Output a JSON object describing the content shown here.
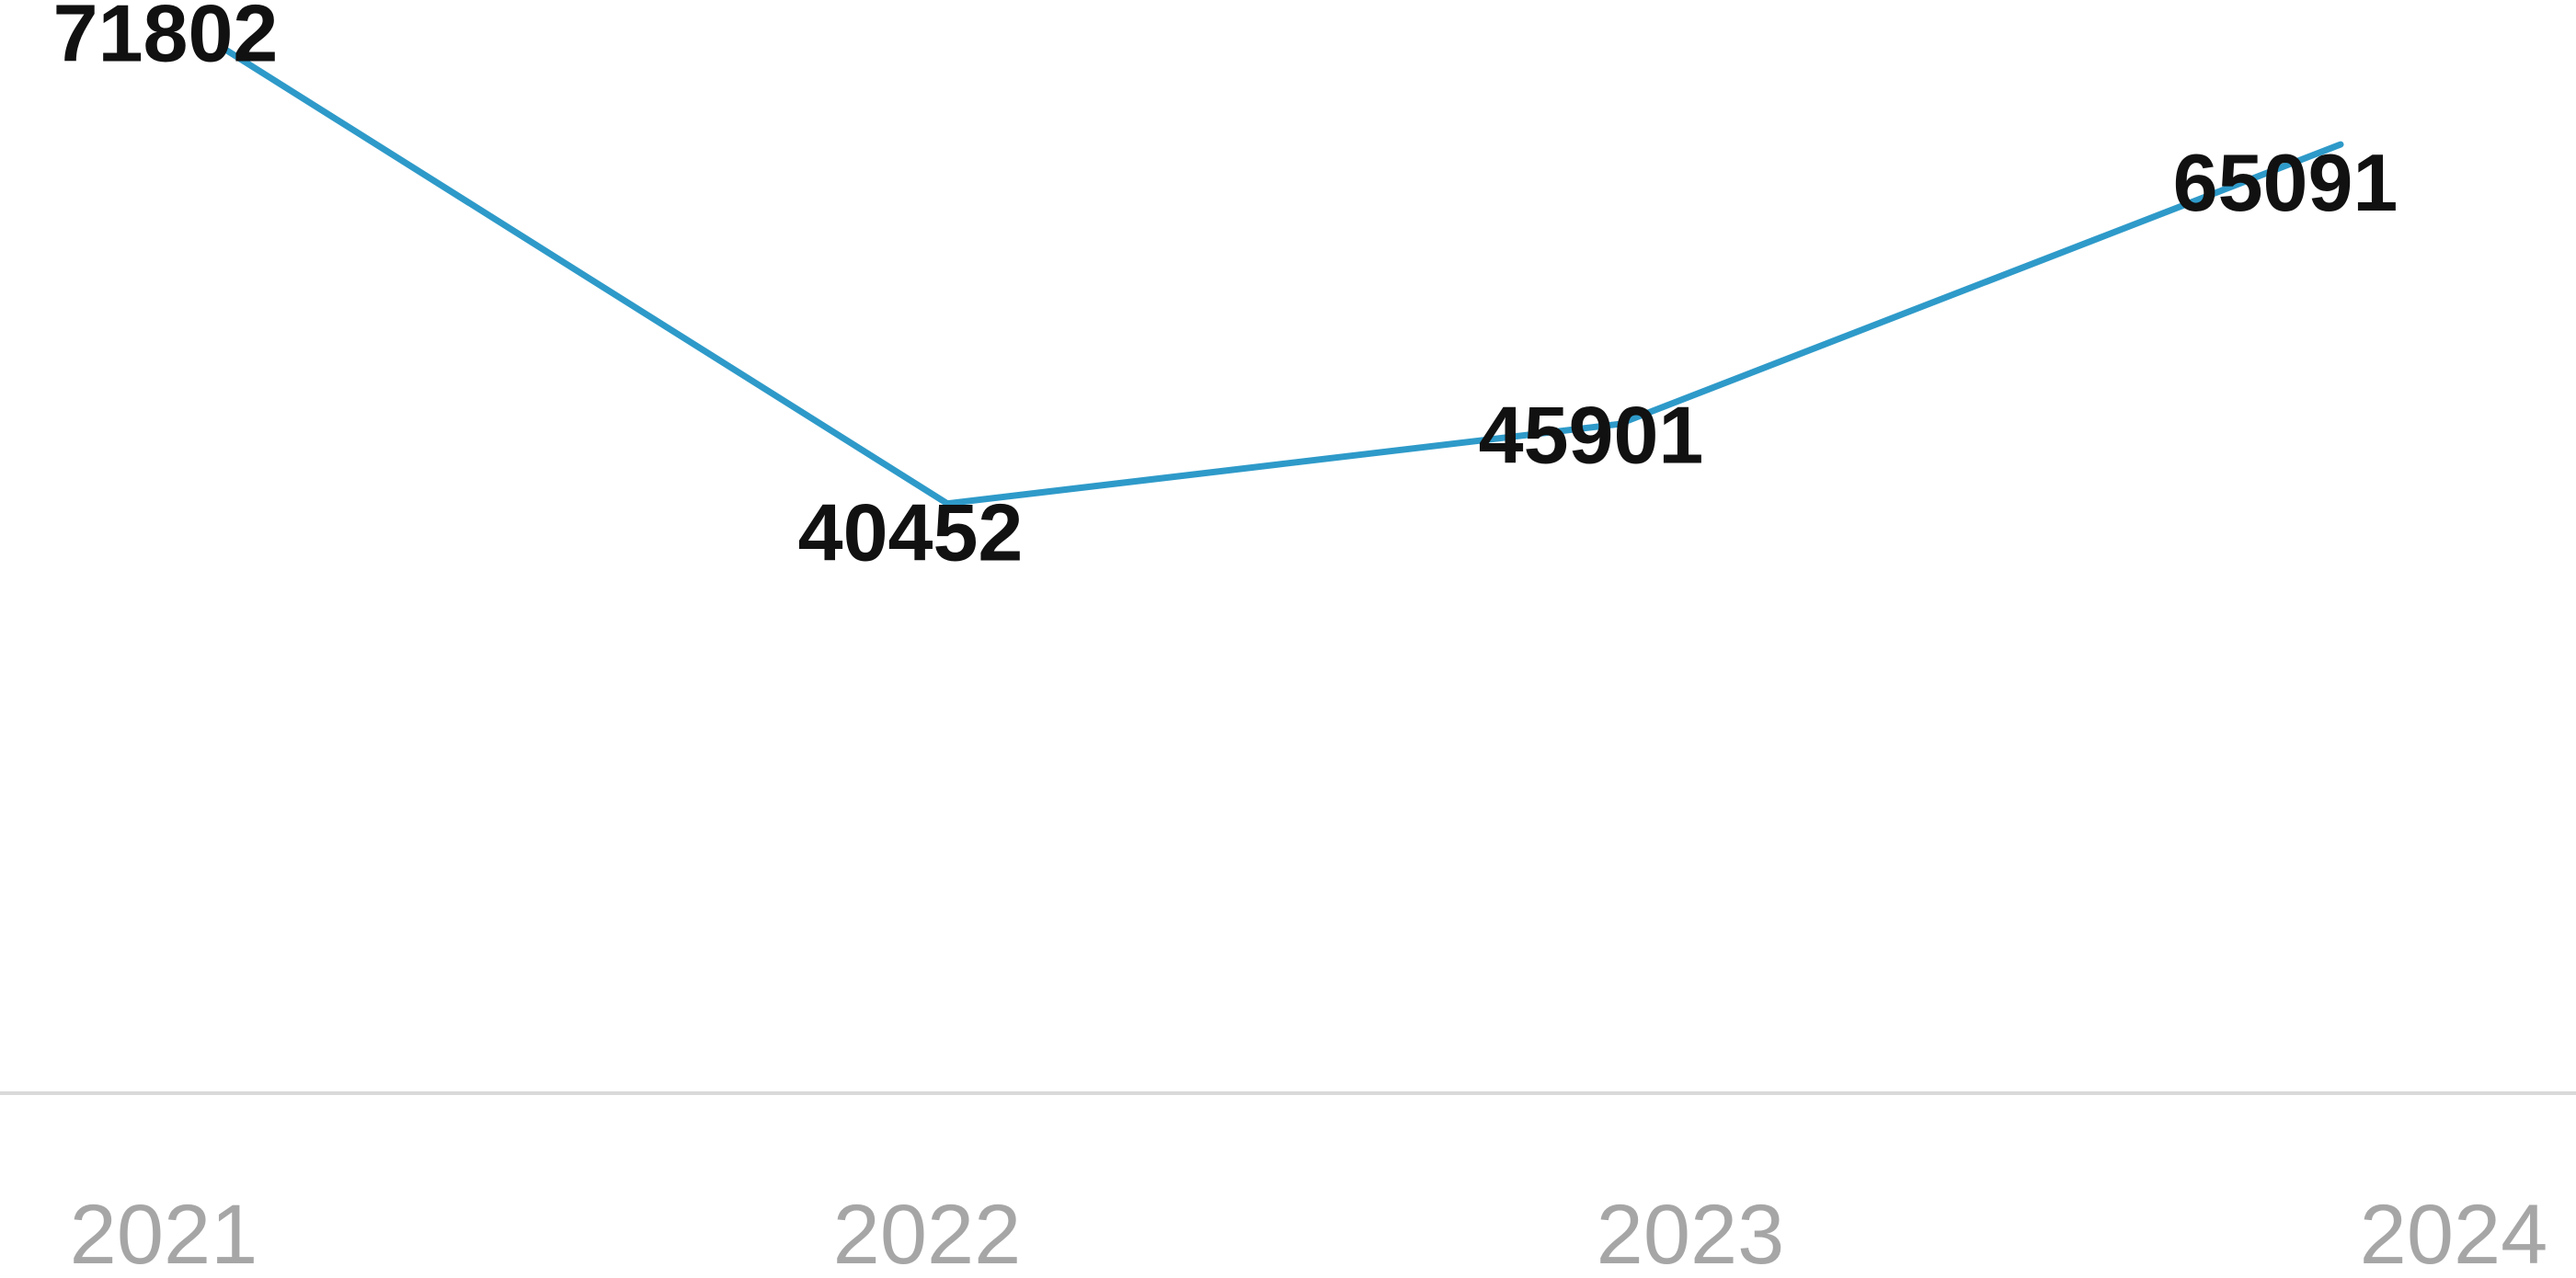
{
  "chart_data": {
    "type": "line",
    "categories": [
      "2021",
      "2022",
      "2023",
      "2024"
    ],
    "series": [
      {
        "values": [
          71802,
          40452,
          45901,
          65091
        ]
      }
    ],
    "data_labels": [
      "71802",
      "40452",
      "45901",
      "65091"
    ],
    "ylim": [
      0,
      75000
    ],
    "grid": false,
    "legend": "none",
    "colors": {
      "line": "#2e9ac9",
      "baseline": "#d9d9d9",
      "data_label": "#111111",
      "tick_label": "#a6a6a6"
    }
  }
}
